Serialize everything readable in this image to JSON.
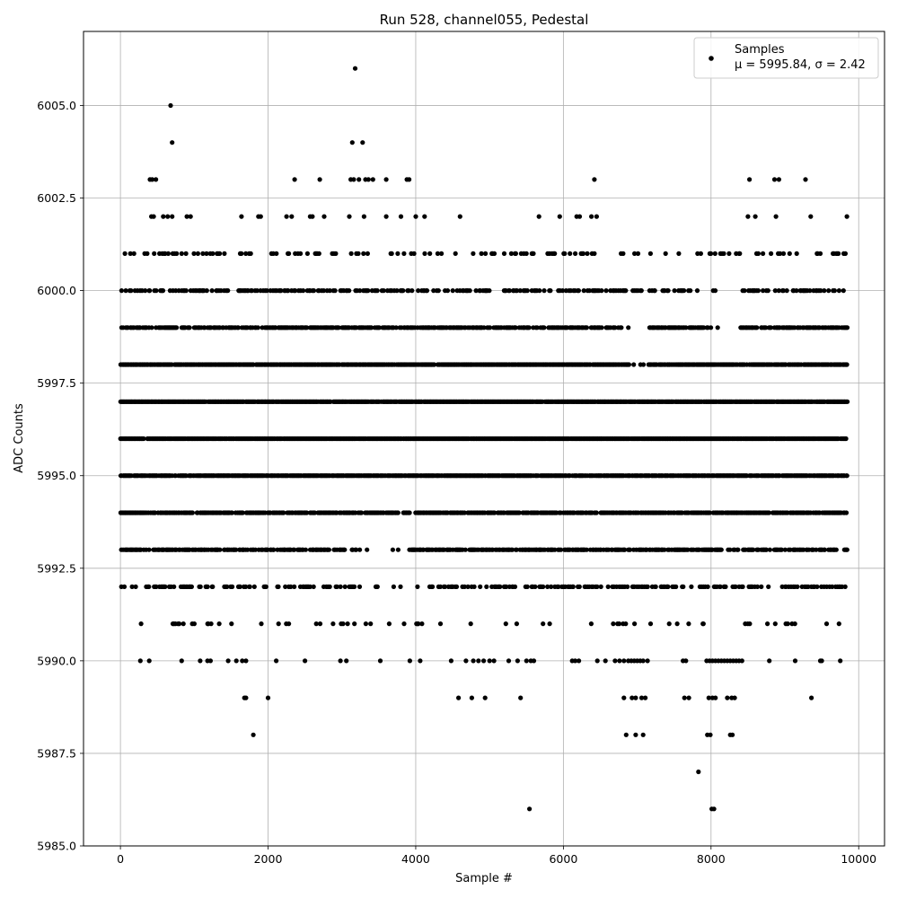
{
  "chart_data": {
    "type": "scatter",
    "title": "Run 528, channel055, Pedestal",
    "xlabel": "Sample #",
    "ylabel": "ADC Counts",
    "xlim": [
      -500,
      10350
    ],
    "ylim": [
      5985.0,
      6007.0
    ],
    "xticks": [
      0,
      2000,
      4000,
      6000,
      8000,
      10000
    ],
    "yticks": [
      5985.0,
      5987.5,
      5990.0,
      5992.5,
      5995.0,
      5997.5,
      6000.0,
      6002.5,
      6005.0
    ],
    "xtick_labels": [
      "0",
      "2000",
      "4000",
      "6000",
      "8000",
      "10000"
    ],
    "ytick_labels": [
      "5985.0",
      "5987.5",
      "5990.0",
      "5992.5",
      "5995.0",
      "5997.5",
      "6000.0",
      "6002.5",
      "6005.0"
    ],
    "grid": true,
    "marker_color": "#000000",
    "legend": {
      "position": "top-right",
      "entries": [
        {
          "label": "Samples",
          "stat": "μ = 5995.84, σ = 2.42"
        }
      ]
    },
    "series": [
      {
        "name": "Samples",
        "dense_bands": [
          {
            "y": 5993,
            "x_start": 0,
            "x_end": 9850,
            "density": 0.55,
            "gaps": [
              [
                3250,
                3900
              ]
            ]
          },
          {
            "y": 5994,
            "x_start": 0,
            "x_end": 9850,
            "density": 0.7
          },
          {
            "y": 5995,
            "x_start": 0,
            "x_end": 9850,
            "density": 0.85
          },
          {
            "y": 5996,
            "x_start": 0,
            "x_end": 9850,
            "density": 0.95
          },
          {
            "y": 5997,
            "x_start": 0,
            "x_end": 9850,
            "density": 0.95
          },
          {
            "y": 5998,
            "x_start": 0,
            "x_end": 9850,
            "density": 0.85,
            "gaps": [
              [
                6900,
                7150
              ]
            ]
          },
          {
            "y": 5999,
            "x_start": 0,
            "x_end": 9850,
            "density": 0.6,
            "gaps": [
              [
                6850,
                7150
              ],
              [
                7900,
                8400
              ]
            ]
          },
          {
            "y": 6000,
            "x_start": 0,
            "x_end": 9850,
            "density": 0.35,
            "gaps": [
              [
                5000,
                5200
              ],
              [
                7900,
                8400
              ]
            ]
          },
          {
            "y": 6001,
            "x_start": 0,
            "x_end": 9850,
            "density": 0.15
          },
          {
            "y": 5992,
            "x_start": 0,
            "x_end": 9850,
            "density": 0.3,
            "gaps": [
              [
                3500,
                4100
              ]
            ]
          },
          {
            "y": 5991,
            "x_start": 0,
            "x_end": 9850,
            "density": 0.08
          }
        ],
        "points": [
          [
            680,
            6005.0
          ],
          [
            3180,
            6006.0
          ],
          [
            700,
            6004.0
          ],
          [
            3140,
            6004.0
          ],
          [
            3280,
            6004.0
          ],
          [
            400,
            6003.0
          ],
          [
            430,
            6003.0
          ],
          [
            480,
            6003.0
          ],
          [
            2360,
            6003.0
          ],
          [
            2700,
            6003.0
          ],
          [
            3120,
            6003.0
          ],
          [
            3160,
            6003.0
          ],
          [
            3230,
            6003.0
          ],
          [
            3320,
            6003.0
          ],
          [
            3360,
            6003.0
          ],
          [
            3420,
            6003.0
          ],
          [
            3600,
            6003.0
          ],
          [
            3880,
            6003.0
          ],
          [
            3910,
            6003.0
          ],
          [
            6420,
            6003.0
          ],
          [
            8520,
            6003.0
          ],
          [
            8860,
            6003.0
          ],
          [
            8920,
            6003.0
          ],
          [
            9280,
            6003.0
          ],
          [
            420,
            6002.0
          ],
          [
            450,
            6002.0
          ],
          [
            580,
            6002.0
          ],
          [
            640,
            6002.0
          ],
          [
            700,
            6002.0
          ],
          [
            900,
            6002.0
          ],
          [
            950,
            6002.0
          ],
          [
            1640,
            6002.0
          ],
          [
            1870,
            6002.0
          ],
          [
            1900,
            6002.0
          ],
          [
            2250,
            6002.0
          ],
          [
            2320,
            6002.0
          ],
          [
            2570,
            6002.0
          ],
          [
            2600,
            6002.0
          ],
          [
            2760,
            6002.0
          ],
          [
            3100,
            6002.0
          ],
          [
            3300,
            6002.0
          ],
          [
            3600,
            6002.0
          ],
          [
            3800,
            6002.0
          ],
          [
            4000,
            6002.0
          ],
          [
            4120,
            6002.0
          ],
          [
            4600,
            6002.0
          ],
          [
            5670,
            6002.0
          ],
          [
            5950,
            6002.0
          ],
          [
            6180,
            6002.0
          ],
          [
            6220,
            6002.0
          ],
          [
            6380,
            6002.0
          ],
          [
            6450,
            6002.0
          ],
          [
            8500,
            6002.0
          ],
          [
            8600,
            6002.0
          ],
          [
            8880,
            6002.0
          ],
          [
            9350,
            6002.0
          ],
          [
            9840,
            6002.0
          ],
          [
            1800,
            5988.0
          ],
          [
            6850,
            5988.0
          ],
          [
            6980,
            5988.0
          ],
          [
            7080,
            5988.0
          ],
          [
            7950,
            5988.0
          ],
          [
            7990,
            5988.0
          ],
          [
            8260,
            5988.0
          ],
          [
            8290,
            5988.0
          ],
          [
            1680,
            5989.0
          ],
          [
            1700,
            5989.0
          ],
          [
            2000,
            5989.0
          ],
          [
            4580,
            5989.0
          ],
          [
            4760,
            5989.0
          ],
          [
            4940,
            5989.0
          ],
          [
            5420,
            5989.0
          ],
          [
            6820,
            5989.0
          ],
          [
            6930,
            5989.0
          ],
          [
            6980,
            5989.0
          ],
          [
            7060,
            5989.0
          ],
          [
            7110,
            5989.0
          ],
          [
            7640,
            5989.0
          ],
          [
            7700,
            5989.0
          ],
          [
            7970,
            5989.0
          ],
          [
            8020,
            5989.0
          ],
          [
            8060,
            5989.0
          ],
          [
            8220,
            5989.0
          ],
          [
            8280,
            5989.0
          ],
          [
            8320,
            5989.0
          ],
          [
            9360,
            5989.0
          ],
          [
            7830,
            5987.0
          ],
          [
            5540,
            5986.0
          ],
          [
            8010,
            5986.0
          ],
          [
            8040,
            5986.0
          ],
          [
            270,
            5990.0
          ],
          [
            390,
            5990.0
          ],
          [
            830,
            5990.0
          ],
          [
            1080,
            5990.0
          ],
          [
            1180,
            5990.0
          ],
          [
            1220,
            5990.0
          ],
          [
            1460,
            5990.0
          ],
          [
            1570,
            5990.0
          ],
          [
            1650,
            5990.0
          ],
          [
            1700,
            5990.0
          ],
          [
            2110,
            5990.0
          ],
          [
            2500,
            5990.0
          ],
          [
            2980,
            5990.0
          ],
          [
            3060,
            5990.0
          ],
          [
            3520,
            5990.0
          ],
          [
            3920,
            5990.0
          ],
          [
            4060,
            5990.0
          ],
          [
            4480,
            5990.0
          ],
          [
            4680,
            5990.0
          ],
          [
            4780,
            5990.0
          ],
          [
            4850,
            5990.0
          ],
          [
            4920,
            5990.0
          ],
          [
            5000,
            5990.0
          ],
          [
            5060,
            5990.0
          ],
          [
            5260,
            5990.0
          ],
          [
            5380,
            5990.0
          ],
          [
            5500,
            5990.0
          ],
          [
            5560,
            5990.0
          ],
          [
            5600,
            5990.0
          ],
          [
            6120,
            5990.0
          ],
          [
            6160,
            5990.0
          ],
          [
            6210,
            5990.0
          ],
          [
            6460,
            5990.0
          ],
          [
            6570,
            5990.0
          ],
          [
            6700,
            5990.0
          ],
          [
            6760,
            5990.0
          ],
          [
            6820,
            5990.0
          ],
          [
            6880,
            5990.0
          ],
          [
            6920,
            5990.0
          ],
          [
            6960,
            5990.0
          ],
          [
            7000,
            5990.0
          ],
          [
            7040,
            5990.0
          ],
          [
            7080,
            5990.0
          ],
          [
            7140,
            5990.0
          ],
          [
            7620,
            5990.0
          ],
          [
            7660,
            5990.0
          ],
          [
            7940,
            5990.0
          ],
          [
            7980,
            5990.0
          ],
          [
            8020,
            5990.0
          ],
          [
            8060,
            5990.0
          ],
          [
            8100,
            5990.0
          ],
          [
            8140,
            5990.0
          ],
          [
            8180,
            5990.0
          ],
          [
            8220,
            5990.0
          ],
          [
            8260,
            5990.0
          ],
          [
            8300,
            5990.0
          ],
          [
            8340,
            5990.0
          ],
          [
            8380,
            5990.0
          ],
          [
            8420,
            5990.0
          ],
          [
            8790,
            5990.0
          ],
          [
            9140,
            5990.0
          ],
          [
            9480,
            5990.0
          ],
          [
            9500,
            5990.0
          ],
          [
            9750,
            5990.0
          ]
        ]
      }
    ]
  }
}
